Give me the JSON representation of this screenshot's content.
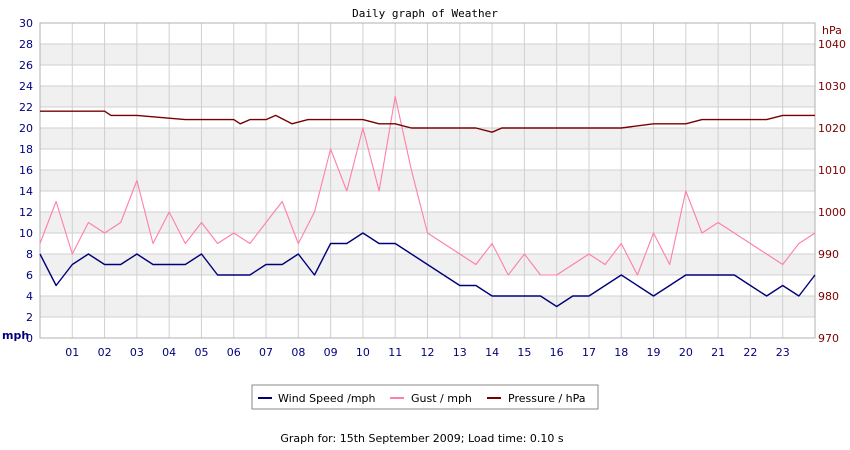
{
  "colors": {
    "wind": "#00007a",
    "gust": "#ff7fa8",
    "pressure": "#7a0000",
    "band": "#f0f0f0",
    "grid": "#d0d0d0"
  },
  "chart_data": {
    "type": "line",
    "title": "Daily graph of Weather",
    "ylabel_left": "mph",
    "ylabel_right": "hPa",
    "xlim": [
      0,
      24
    ],
    "ylim_left": [
      0,
      30
    ],
    "ylim_right": [
      970,
      1045
    ],
    "y_ticks_left": [
      0,
      2,
      4,
      6,
      8,
      10,
      12,
      14,
      16,
      18,
      20,
      22,
      24,
      26,
      28,
      30
    ],
    "y_ticks_right": [
      970,
      980,
      990,
      1000,
      1010,
      1020,
      1030,
      1040
    ],
    "x_ticks": [
      "01",
      "02",
      "03",
      "04",
      "05",
      "06",
      "07",
      "08",
      "09",
      "10",
      "11",
      "12",
      "13",
      "14",
      "15",
      "16",
      "17",
      "18",
      "19",
      "20",
      "21",
      "22",
      "23"
    ],
    "grid": true,
    "legend_position": "bottom",
    "series": [
      {
        "name": "Wind Speed /mph",
        "axis": "left",
        "x": [
          0,
          0.5,
          1,
          1.5,
          2,
          2.5,
          3,
          3.5,
          4,
          4.5,
          5,
          5.5,
          6,
          6.5,
          7,
          7.5,
          8,
          8.5,
          9,
          9.5,
          10,
          10.5,
          11,
          11.5,
          12,
          12.5,
          13,
          13.5,
          14,
          14.5,
          15,
          15.5,
          16,
          16.5,
          17,
          17.5,
          18,
          18.5,
          19,
          19.5,
          20,
          20.5,
          21,
          21.5,
          22,
          22.5,
          23,
          23.5,
          24
        ],
        "values": [
          8,
          5,
          7,
          8,
          7,
          7,
          8,
          7,
          7,
          7,
          8,
          6,
          6,
          6,
          7,
          7,
          8,
          6,
          9,
          9,
          10,
          9,
          9,
          8,
          7,
          6,
          5,
          5,
          4,
          4,
          4,
          4,
          3,
          4,
          4,
          5,
          6,
          5,
          4,
          5,
          6,
          6,
          6,
          6,
          5,
          4,
          5,
          4,
          6
        ]
      },
      {
        "name": "Gust / mph",
        "axis": "left",
        "x": [
          0,
          0.5,
          1,
          1.5,
          2,
          2.5,
          3,
          3.5,
          4,
          4.5,
          5,
          5.5,
          6,
          6.5,
          7,
          7.5,
          8,
          8.5,
          9,
          9.5,
          10,
          10.5,
          11,
          11.5,
          12,
          12.5,
          13,
          13.5,
          14,
          14.5,
          15,
          15.5,
          16,
          16.5,
          17,
          17.5,
          18,
          18.5,
          19,
          19.5,
          20,
          20.5,
          21,
          21.5,
          22,
          22.5,
          23,
          23.5,
          24
        ],
        "values": [
          9,
          13,
          8,
          11,
          10,
          11,
          15,
          9,
          12,
          9,
          11,
          9,
          10,
          9,
          11,
          13,
          9,
          12,
          18,
          14,
          20,
          14,
          23,
          16,
          10,
          9,
          8,
          7,
          9,
          6,
          8,
          6,
          6,
          7,
          8,
          7,
          9,
          6,
          10,
          7,
          14,
          10,
          11,
          10,
          9,
          8,
          7,
          9,
          10
        ]
      },
      {
        "name": "Pressure / hPa",
        "axis": "right",
        "x": [
          0,
          0.5,
          1,
          2,
          2.2,
          3,
          4.5,
          5,
          6,
          6.2,
          6.5,
          7,
          7.3,
          7.8,
          8.3,
          9,
          10,
          10.5,
          11,
          11.5,
          12,
          13,
          13.5,
          14,
          14.3,
          15,
          16,
          17,
          18,
          19,
          20,
          20.5,
          21,
          22,
          22.5,
          23,
          24
        ],
        "values": [
          1024,
          1024,
          1024,
          1024,
          1023,
          1023,
          1022,
          1022,
          1022,
          1021,
          1022,
          1022,
          1023,
          1021,
          1022,
          1022,
          1022,
          1021,
          1021,
          1020,
          1020,
          1020,
          1020,
          1019,
          1020,
          1020,
          1020,
          1020,
          1020,
          1021,
          1021,
          1022,
          1022,
          1022,
          1022,
          1023,
          1023
        ]
      }
    ],
    "footer": "Graph for: 15th September 2009; Load time: 0.10 s"
  }
}
